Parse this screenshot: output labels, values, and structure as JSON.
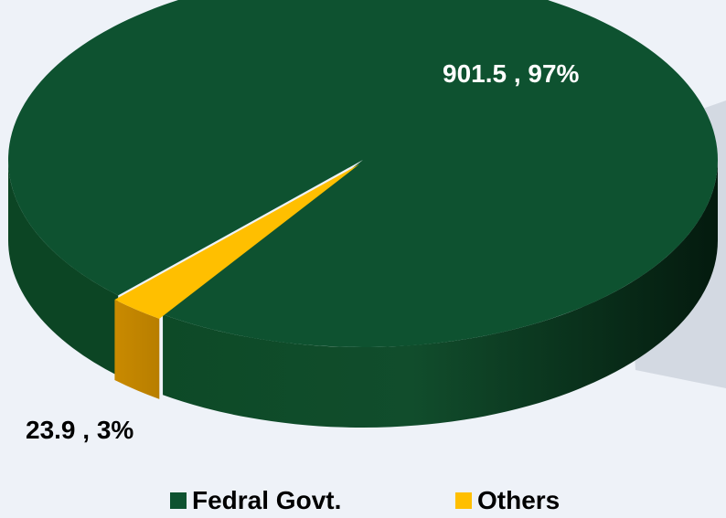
{
  "chart_data": {
    "type": "pie",
    "title": "",
    "series": [
      {
        "categories": [
          "Fedral Govt.",
          "Others"
        ],
        "values": [
          901.5,
          23.9
        ],
        "percents": [
          "97%",
          "3%"
        ],
        "data_labels": [
          "901.5 , 97%",
          "23.9 , 3%"
        ],
        "colors": [
          "#0e5230",
          "#ffbf00"
        ]
      }
    ],
    "legend": {
      "placement": "bottom",
      "entries": [
        "Fedral Govt.",
        "Others"
      ]
    },
    "style": "3d-exploded"
  },
  "colors": {
    "background": "#eef2f8",
    "major_slice": "#0e5230",
    "minor_slice": "#ffbf00"
  }
}
